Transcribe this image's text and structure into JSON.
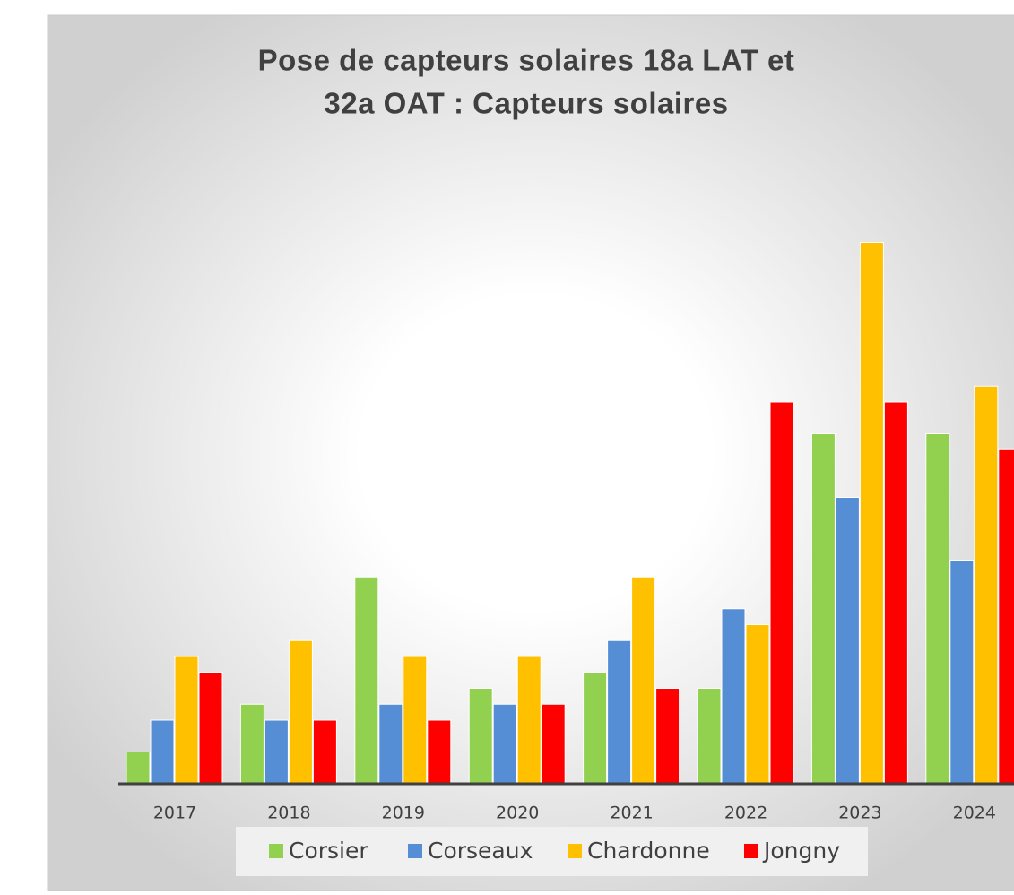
{
  "chart_data": {
    "type": "bar",
    "title": [
      "Pose de capteurs solaires 18a LAT et",
      "32a OAT : Capteurs solaires"
    ],
    "categories": [
      "2017",
      "2018",
      "2019",
      "2020",
      "2021",
      "2022",
      "2023",
      "2024"
    ],
    "series": [
      {
        "name": "Corsier",
        "color": "#92d050",
        "values": [
          2,
          5,
          13,
          6,
          7,
          6,
          22,
          22
        ]
      },
      {
        "name": "Corseaux",
        "color": "#558ed5",
        "values": [
          4,
          4,
          5,
          5,
          9,
          11,
          18,
          14
        ]
      },
      {
        "name": "Chardonne",
        "color": "#ffc000",
        "values": [
          8,
          9,
          8,
          8,
          13,
          10,
          34,
          25
        ]
      },
      {
        "name": "Jongny",
        "color": "#ff0000",
        "values": [
          7,
          4,
          4,
          5,
          6,
          24,
          24,
          21
        ]
      }
    ],
    "legend": "bottom"
  }
}
